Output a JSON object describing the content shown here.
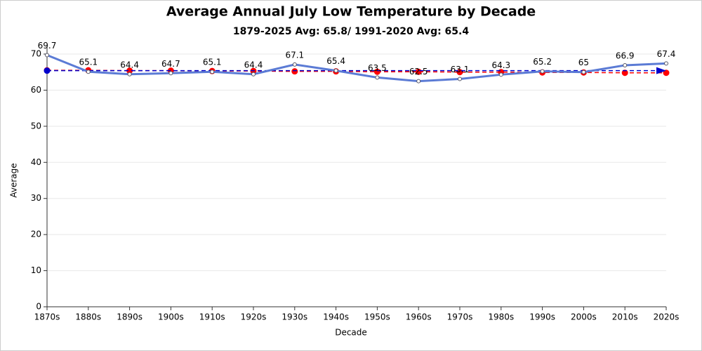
{
  "chart_data": {
    "type": "line",
    "title": "Average Annual July Low Temperature by Decade",
    "subtitle": "1879-2025 Avg: 65.8/ 1991-2020 Avg: 65.4",
    "x_label": "Decade",
    "y_label": "Average",
    "categories": [
      "1870s",
      "1880s",
      "1890s",
      "1900s",
      "1910s",
      "1920s",
      "1930s",
      "1940s",
      "1950s",
      "1960s",
      "1970s",
      "1980s",
      "1990s",
      "2000s",
      "2010s",
      "2020s"
    ],
    "series": [
      {
        "color": "#5b7bd5",
        "values": [
          69.7,
          65.1,
          64.4,
          64.7,
          65.1,
          64.4,
          67.1,
          65.4,
          63.5,
          62.5,
          63.1,
          64.3,
          65.2,
          65,
          66.9,
          67.4
        ],
        "data_labels": true
      },
      {
        "color": "#ff0000",
        "values": [
          65.5,
          65.5,
          65.4,
          65.4,
          65.3,
          65.3,
          65.2,
          65.2,
          65.1,
          65.1,
          65.0,
          65.0,
          64.9,
          64.9,
          64.8,
          64.8
        ],
        "dashed": true
      }
    ],
    "reference": {
      "value": 65.4,
      "color": "#0000cc"
    },
    "ylim": [
      0,
      70
    ],
    "yticks": [
      0,
      10,
      20,
      30,
      40,
      50,
      60,
      70
    ],
    "grid": true
  }
}
